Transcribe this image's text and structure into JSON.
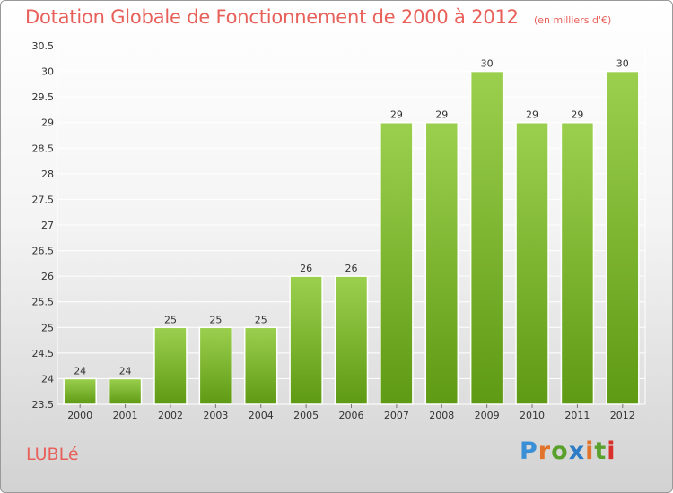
{
  "header": {
    "title": "Dotation Globale de Fonctionnement de 2000 à 2012",
    "unit": "(en milliers d'€)"
  },
  "footer": {
    "commune": "LUBLé",
    "logo_text": "Proxiti",
    "logo_colors": [
      "#3b8fd6",
      "#e2732a",
      "#5aa02c",
      "#2e7bc6",
      "#e2732a",
      "#5aa02c",
      "#d9302a"
    ]
  },
  "colors": {
    "bar_top": "#9bd04e",
    "bar_bottom": "#5f9a14",
    "grid": "#ffffff",
    "text": "#e8605a"
  },
  "chart_data": {
    "type": "bar",
    "categories": [
      "2000",
      "2001",
      "2002",
      "2003",
      "2004",
      "2005",
      "2006",
      "2007",
      "2008",
      "2009",
      "2010",
      "2011",
      "2012"
    ],
    "values": [
      24,
      24,
      25,
      25,
      25,
      26,
      26,
      29,
      29,
      30,
      29,
      29,
      30
    ],
    "data_labels": [
      "24",
      "24",
      "25",
      "25",
      "25",
      "26",
      "26",
      "29",
      "29",
      "30",
      "29",
      "29",
      "30"
    ],
    "ylim": [
      23.5,
      30.5
    ],
    "yticks": [
      "23.5",
      "24",
      "24.5",
      "25",
      "25.5",
      "26",
      "26.5",
      "27",
      "27.5",
      "28",
      "28.5",
      "29",
      "29.5",
      "30",
      "30.5"
    ],
    "grid": true,
    "legend": "none"
  }
}
